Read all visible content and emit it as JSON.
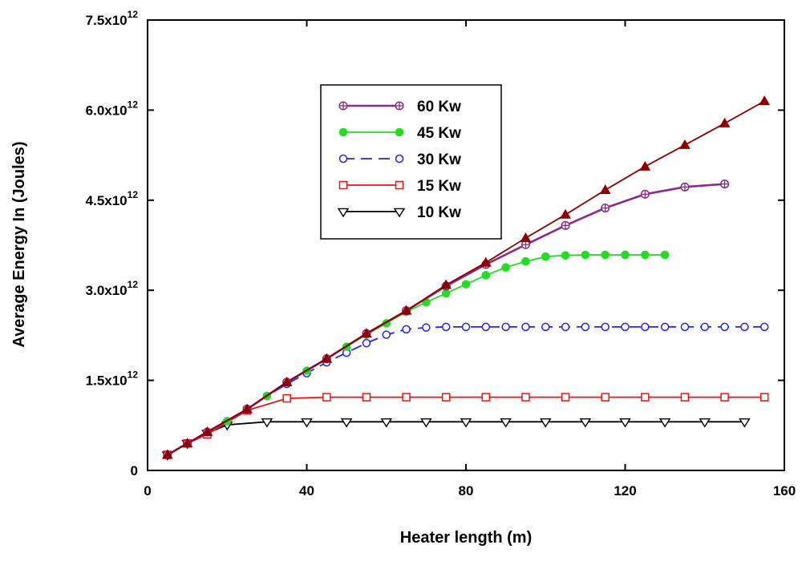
{
  "chart_data": {
    "type": "line",
    "title": "",
    "xlabel": "Heater length (m)",
    "ylabel": "Average Energy In (Joules)",
    "xlim": [
      0,
      160
    ],
    "ylim": [
      0,
      7.5
    ],
    "y_unit_note": "values in units of 10^12 J",
    "x_ticks": [
      0,
      40,
      80,
      120,
      160
    ],
    "x_tick_labels": [
      "0",
      "40",
      "80",
      "120",
      "160"
    ],
    "y_ticks": [
      {
        "value": 0,
        "base": "0",
        "exp": ""
      },
      {
        "value": 1.5,
        "base": "1.5x10",
        "exp": "12"
      },
      {
        "value": 3.0,
        "base": "3.0x10",
        "exp": "12"
      },
      {
        "value": 4.5,
        "base": "4.5x10",
        "exp": "12"
      },
      {
        "value": 6.0,
        "base": "6.0x10",
        "exp": "12"
      },
      {
        "value": 7.5,
        "base": "7.5x10",
        "exp": "12"
      }
    ],
    "grid": false,
    "legend_position": "upper-left",
    "series": [
      {
        "name": "unlabeled (triangles)",
        "in_legend": false,
        "color": "#8b0000",
        "marker": "triangle-up-filled",
        "dash": "",
        "x": [
          5,
          10,
          15,
          25,
          35,
          45,
          55,
          65,
          75,
          85,
          95,
          105,
          115,
          125,
          135,
          145,
          155
        ],
        "y": [
          0.26,
          0.45,
          0.64,
          1.02,
          1.47,
          1.86,
          2.28,
          2.66,
          3.09,
          3.46,
          3.87,
          4.26,
          4.67,
          5.06,
          5.42,
          5.78,
          6.15
        ]
      },
      {
        "name": "60 Kw",
        "in_legend": true,
        "color": "#8b2a8b",
        "marker": "circle-crossed",
        "dash": "",
        "x": [
          5,
          10,
          15,
          25,
          35,
          45,
          55,
          65,
          75,
          85,
          95,
          105,
          115,
          125,
          135,
          145
        ],
        "y": [
          0.26,
          0.45,
          0.64,
          1.02,
          1.47,
          1.86,
          2.28,
          2.66,
          3.07,
          3.43,
          3.76,
          4.08,
          4.37,
          4.6,
          4.72,
          4.77
        ]
      },
      {
        "name": "45 Kw",
        "in_legend": true,
        "color": "#22dd22",
        "marker": "circle-filled",
        "dash": "",
        "x": [
          5,
          10,
          15,
          20,
          25,
          30,
          35,
          40,
          45,
          50,
          55,
          60,
          65,
          70,
          75,
          80,
          85,
          90,
          95,
          100,
          105,
          110,
          115,
          120,
          125,
          130
        ],
        "y": [
          0.26,
          0.45,
          0.64,
          0.82,
          1.02,
          1.24,
          1.47,
          1.66,
          1.86,
          2.06,
          2.26,
          2.45,
          2.64,
          2.8,
          2.95,
          3.1,
          3.25,
          3.38,
          3.48,
          3.56,
          3.58,
          3.59,
          3.59,
          3.59,
          3.59,
          3.59
        ]
      },
      {
        "name": "30 Kw",
        "in_legend": true,
        "color": "#2222ee",
        "marker": "circle-open",
        "dash": "14,8",
        "x": [
          5,
          10,
          15,
          20,
          25,
          30,
          35,
          40,
          45,
          50,
          55,
          60,
          65,
          70,
          75,
          80,
          85,
          90,
          95,
          100,
          105,
          110,
          115,
          120,
          125,
          130,
          135,
          140,
          145,
          150,
          155
        ],
        "y": [
          0.26,
          0.45,
          0.64,
          0.82,
          1.02,
          1.24,
          1.44,
          1.62,
          1.8,
          1.96,
          2.12,
          2.26,
          2.35,
          2.38,
          2.39,
          2.39,
          2.39,
          2.39,
          2.39,
          2.39,
          2.39,
          2.39,
          2.39,
          2.39,
          2.39,
          2.39,
          2.39,
          2.39,
          2.39,
          2.39,
          2.39
        ]
      },
      {
        "name": "15 Kw",
        "in_legend": true,
        "color": "#ee1111",
        "marker": "square-open",
        "dash": "",
        "x": [
          5,
          10,
          15,
          25,
          35,
          45,
          55,
          65,
          75,
          85,
          95,
          105,
          115,
          125,
          135,
          145,
          155
        ],
        "y": [
          0.26,
          0.45,
          0.6,
          1.0,
          1.2,
          1.22,
          1.22,
          1.22,
          1.22,
          1.22,
          1.22,
          1.22,
          1.22,
          1.22,
          1.22,
          1.22,
          1.22
        ]
      },
      {
        "name": "10 Kw",
        "in_legend": true,
        "color": "#000000",
        "marker": "triangle-down-open",
        "dash": "",
        "x": [
          5,
          10,
          15,
          20,
          30,
          40,
          50,
          60,
          70,
          80,
          90,
          100,
          110,
          120,
          130,
          140,
          150
        ],
        "y": [
          0.26,
          0.45,
          0.62,
          0.76,
          0.81,
          0.81,
          0.81,
          0.81,
          0.81,
          0.81,
          0.81,
          0.81,
          0.81,
          0.81,
          0.81,
          0.81,
          0.81
        ]
      }
    ]
  }
}
